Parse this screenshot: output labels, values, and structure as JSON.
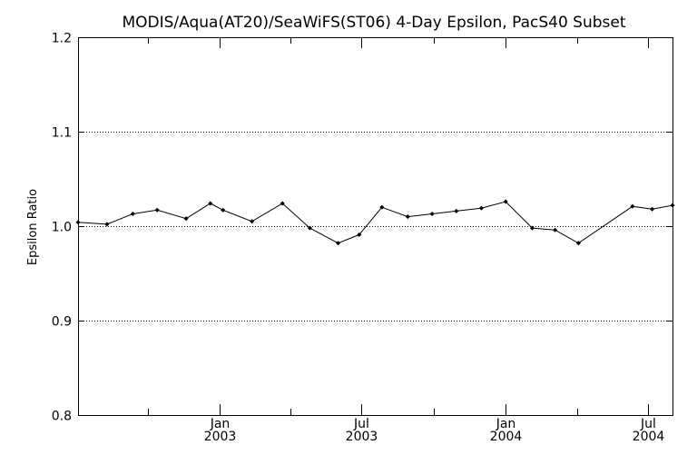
{
  "chart_data": {
    "type": "line",
    "title": "MODIS/Aqua(AT20)/SeaWiFS(ST06) 4-Day Epsilon, PacS40 Subset",
    "xlabel": "",
    "ylabel": "Epsilon Ratio",
    "ylim": [
      0.8,
      1.2
    ],
    "xlim": [
      "2002-07-04",
      "2004-08-01"
    ],
    "yticks": [
      {
        "value": 0.8,
        "label": "0.8"
      },
      {
        "value": 0.9,
        "label": "0.9"
      },
      {
        "value": 1.0,
        "label": "1.0"
      },
      {
        "value": 1.1,
        "label": "1.1"
      },
      {
        "value": 1.2,
        "label": "1.2"
      }
    ],
    "xticks_major": [
      {
        "date": "2003-01-01",
        "month": "Jan",
        "year": "2003"
      },
      {
        "date": "2003-07-01",
        "month": "Jul",
        "year": "2003"
      },
      {
        "date": "2004-01-01",
        "month": "Jan",
        "year": "2004"
      },
      {
        "date": "2004-07-01",
        "month": "Jul",
        "year": "2004"
      }
    ],
    "xticks_minor": [
      "2002-10-01",
      "2003-04-01",
      "2003-10-01",
      "2004-04-01"
    ],
    "grid": "horizontal dotted at 0.9, 1.0, 1.1",
    "series": [
      {
        "color": "#000000",
        "marker": "diamond",
        "points": [
          {
            "x": "2002-07-04",
            "y": 1.004
          },
          {
            "x": "2002-08-10",
            "y": 1.002
          },
          {
            "x": "2002-09-12",
            "y": 1.013
          },
          {
            "x": "2002-10-13",
            "y": 1.017
          },
          {
            "x": "2002-11-19",
            "y": 1.008
          },
          {
            "x": "2002-12-20",
            "y": 1.024
          },
          {
            "x": "2003-01-05",
            "y": 1.017
          },
          {
            "x": "2003-02-11",
            "y": 1.005
          },
          {
            "x": "2003-03-22",
            "y": 1.024
          },
          {
            "x": "2003-04-26",
            "y": 0.998
          },
          {
            "x": "2003-06-01",
            "y": 0.982
          },
          {
            "x": "2003-06-28",
            "y": 0.991
          },
          {
            "x": "2003-07-27",
            "y": 1.02
          },
          {
            "x": "2003-08-29",
            "y": 1.01
          },
          {
            "x": "2003-09-29",
            "y": 1.013
          },
          {
            "x": "2003-10-30",
            "y": 1.016
          },
          {
            "x": "2003-12-01",
            "y": 1.019
          },
          {
            "x": "2004-01-01",
            "y": 1.026
          },
          {
            "x": "2004-02-04",
            "y": 0.998
          },
          {
            "x": "2004-03-04",
            "y": 0.996
          },
          {
            "x": "2004-04-03",
            "y": 0.982
          },
          {
            "x": "2004-06-11",
            "y": 1.021
          },
          {
            "x": "2004-07-06",
            "y": 1.018
          },
          {
            "x": "2004-08-01",
            "y": 1.022
          }
        ]
      }
    ]
  }
}
